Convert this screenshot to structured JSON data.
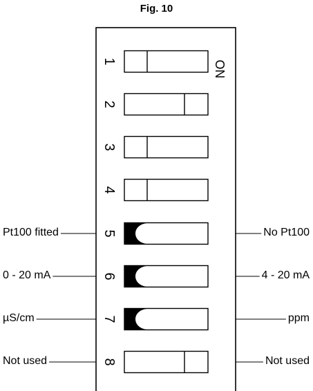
{
  "figure": {
    "title": "Fig. 10",
    "on_label": "ON"
  },
  "switches": [
    {
      "number": "1",
      "state": "off",
      "left_label": "",
      "right_label": ""
    },
    {
      "number": "2",
      "state": "on",
      "left_label": "",
      "right_label": ""
    },
    {
      "number": "3",
      "state": "off",
      "left_label": "",
      "right_label": ""
    },
    {
      "number": "4",
      "state": "off",
      "left_label": "",
      "right_label": ""
    },
    {
      "number": "5",
      "state": "off",
      "left_label": "Pt100 fitted",
      "right_label": "No Pt100",
      "filled": true
    },
    {
      "number": "6",
      "state": "off",
      "left_label": "0 - 20 mA",
      "right_label": "4 - 20 mA",
      "filled": true
    },
    {
      "number": "7",
      "state": "off",
      "left_label": "µS/cm",
      "right_label": "ppm",
      "filled": true
    },
    {
      "number": "8",
      "state": "on",
      "left_label": "Not used",
      "right_label": "Not used"
    }
  ]
}
